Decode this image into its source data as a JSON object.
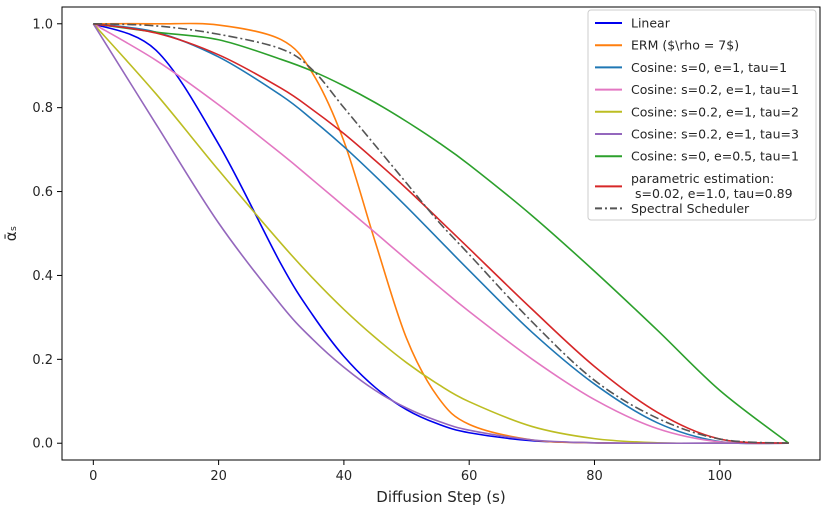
{
  "chart_data": {
    "type": "line",
    "title": "",
    "xlabel": "Diffusion Step (s)",
    "ylabel": "ᾱₛ",
    "xlim": [
      -5,
      116
    ],
    "ylim": [
      -0.04,
      1.04
    ],
    "xticks": [
      0,
      20,
      40,
      60,
      80,
      100
    ],
    "yticks": [
      0.0,
      0.2,
      0.4,
      0.6,
      0.8,
      1.0
    ],
    "xtick_labels": [
      "0",
      "20",
      "40",
      "60",
      "80",
      "100"
    ],
    "ytick_labels": [
      "0.0",
      "0.2",
      "0.4",
      "0.6",
      "0.8",
      "1.0"
    ],
    "grid": false,
    "legend_position": "top-right",
    "x": [
      0,
      10,
      20,
      30,
      35,
      40,
      45,
      50,
      55,
      60,
      70,
      80,
      90,
      100,
      111
    ],
    "series": [
      {
        "name": "Linear",
        "color": "#0000ee",
        "dash": "solid",
        "values": [
          1.0,
          0.937,
          0.713,
          0.426,
          0.306,
          0.207,
          0.133,
          0.08,
          0.046,
          0.025,
          0.006,
          0.001,
          0.0,
          0.0,
          0.0
        ]
      },
      {
        "name": "ERM ($\\rho = 7$)",
        "color": "#ff7f0e",
        "dash": "solid",
        "values": [
          1.0,
          1.0,
          0.997,
          0.962,
          0.882,
          0.72,
          0.48,
          0.25,
          0.11,
          0.045,
          0.008,
          0.001,
          0.0,
          0.0,
          0.0
        ]
      },
      {
        "name": "Cosine: s=0, e=1, tau=1",
        "color": "#1f77b4",
        "dash": "solid",
        "values": [
          1.0,
          0.98,
          0.921,
          0.829,
          0.771,
          0.707,
          0.637,
          0.564,
          0.488,
          0.412,
          0.265,
          0.141,
          0.049,
          0.004,
          0.0
        ]
      },
      {
        "name": "Cosine: s=0.2, e=1, tau=1",
        "color": "#e377c2",
        "dash": "solid",
        "values": [
          1.0,
          0.913,
          0.807,
          0.69,
          0.628,
          0.565,
          0.502,
          0.438,
          0.375,
          0.314,
          0.201,
          0.104,
          0.035,
          0.003,
          0.0
        ]
      },
      {
        "name": "Cosine: s=0.2, e=1, tau=2",
        "color": "#bcbd22",
        "dash": "solid",
        "values": [
          1.0,
          0.833,
          0.651,
          0.476,
          0.394,
          0.319,
          0.252,
          0.192,
          0.141,
          0.099,
          0.04,
          0.011,
          0.001,
          0.0,
          0.0
        ]
      },
      {
        "name": "Cosine: s=0.2, e=1, tau=3",
        "color": "#9467bd",
        "dash": "solid",
        "values": [
          1.0,
          0.761,
          0.525,
          0.329,
          0.248,
          0.181,
          0.126,
          0.084,
          0.053,
          0.031,
          0.008,
          0.001,
          0.0,
          0.0,
          0.0
        ]
      },
      {
        "name": "Cosine: s=0, e=0.5, tau=1",
        "color": "#2ca02c",
        "dash": "solid",
        "values": [
          1.0,
          0.98,
          0.962,
          0.915,
          0.887,
          0.852,
          0.812,
          0.767,
          0.718,
          0.664,
          0.543,
          0.41,
          0.27,
          0.126,
          0.0
        ]
      },
      {
        "name": "parametric estimation:\n s=0.02, e=1.0, tau=0.89",
        "color": "#d62728",
        "dash": "solid",
        "values": [
          1.0,
          0.978,
          0.926,
          0.846,
          0.795,
          0.738,
          0.674,
          0.607,
          0.536,
          0.464,
          0.32,
          0.183,
          0.074,
          0.01,
          0.0
        ]
      },
      {
        "name": "Spectral Scheduler",
        "color": "#555555",
        "dash": "dashdot",
        "values": [
          1.0,
          0.995,
          0.975,
          0.94,
          0.89,
          0.8,
          0.71,
          0.62,
          0.53,
          0.45,
          0.29,
          0.15,
          0.06,
          0.01,
          0.0
        ]
      }
    ]
  }
}
